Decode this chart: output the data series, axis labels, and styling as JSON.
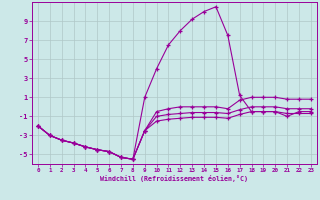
{
  "x": [
    0,
    1,
    2,
    3,
    4,
    5,
    6,
    7,
    8,
    9,
    10,
    11,
    12,
    13,
    14,
    15,
    16,
    17,
    18,
    19,
    20,
    21,
    22,
    23
  ],
  "main": [
    -2.0,
    -3.0,
    -3.5,
    -3.8,
    -4.2,
    -4.5,
    -4.7,
    -5.3,
    -5.5,
    1.0,
    4.0,
    6.5,
    8.0,
    9.2,
    10.0,
    10.5,
    7.5,
    1.2,
    -0.5,
    -0.5,
    -0.5,
    -1.0,
    -0.5,
    -0.5
  ],
  "lo1": [
    -2.0,
    -3.0,
    -3.5,
    -3.8,
    -4.2,
    -4.5,
    -4.7,
    -5.3,
    -5.5,
    -2.5,
    -0.5,
    -0.2,
    0.0,
    0.0,
    0.0,
    0.0,
    -0.2,
    0.7,
    1.0,
    1.0,
    1.0,
    0.8,
    0.8,
    0.8
  ],
  "lo2": [
    -2.0,
    -3.0,
    -3.5,
    -3.8,
    -4.2,
    -4.5,
    -4.7,
    -5.3,
    -5.5,
    -2.5,
    -1.0,
    -0.8,
    -0.7,
    -0.6,
    -0.6,
    -0.6,
    -0.7,
    -0.3,
    0.0,
    0.0,
    0.0,
    -0.2,
    -0.2,
    -0.2
  ],
  "lo3": [
    -2.0,
    -3.0,
    -3.5,
    -3.8,
    -4.2,
    -4.5,
    -4.7,
    -5.3,
    -5.5,
    -2.5,
    -1.5,
    -1.3,
    -1.2,
    -1.1,
    -1.1,
    -1.1,
    -1.2,
    -0.8,
    -0.5,
    -0.5,
    -0.5,
    -0.7,
    -0.7,
    -0.7
  ],
  "bg_color": "#cce8e8",
  "line_color": "#990099",
  "grid_color": "#b0c8c8",
  "xlabel": "Windchill (Refroidissement éolien,°C)",
  "yticks": [
    -5,
    -3,
    -1,
    1,
    3,
    5,
    7,
    9
  ],
  "xlim": [
    -0.5,
    23.5
  ],
  "ylim": [
    -6,
    11
  ]
}
